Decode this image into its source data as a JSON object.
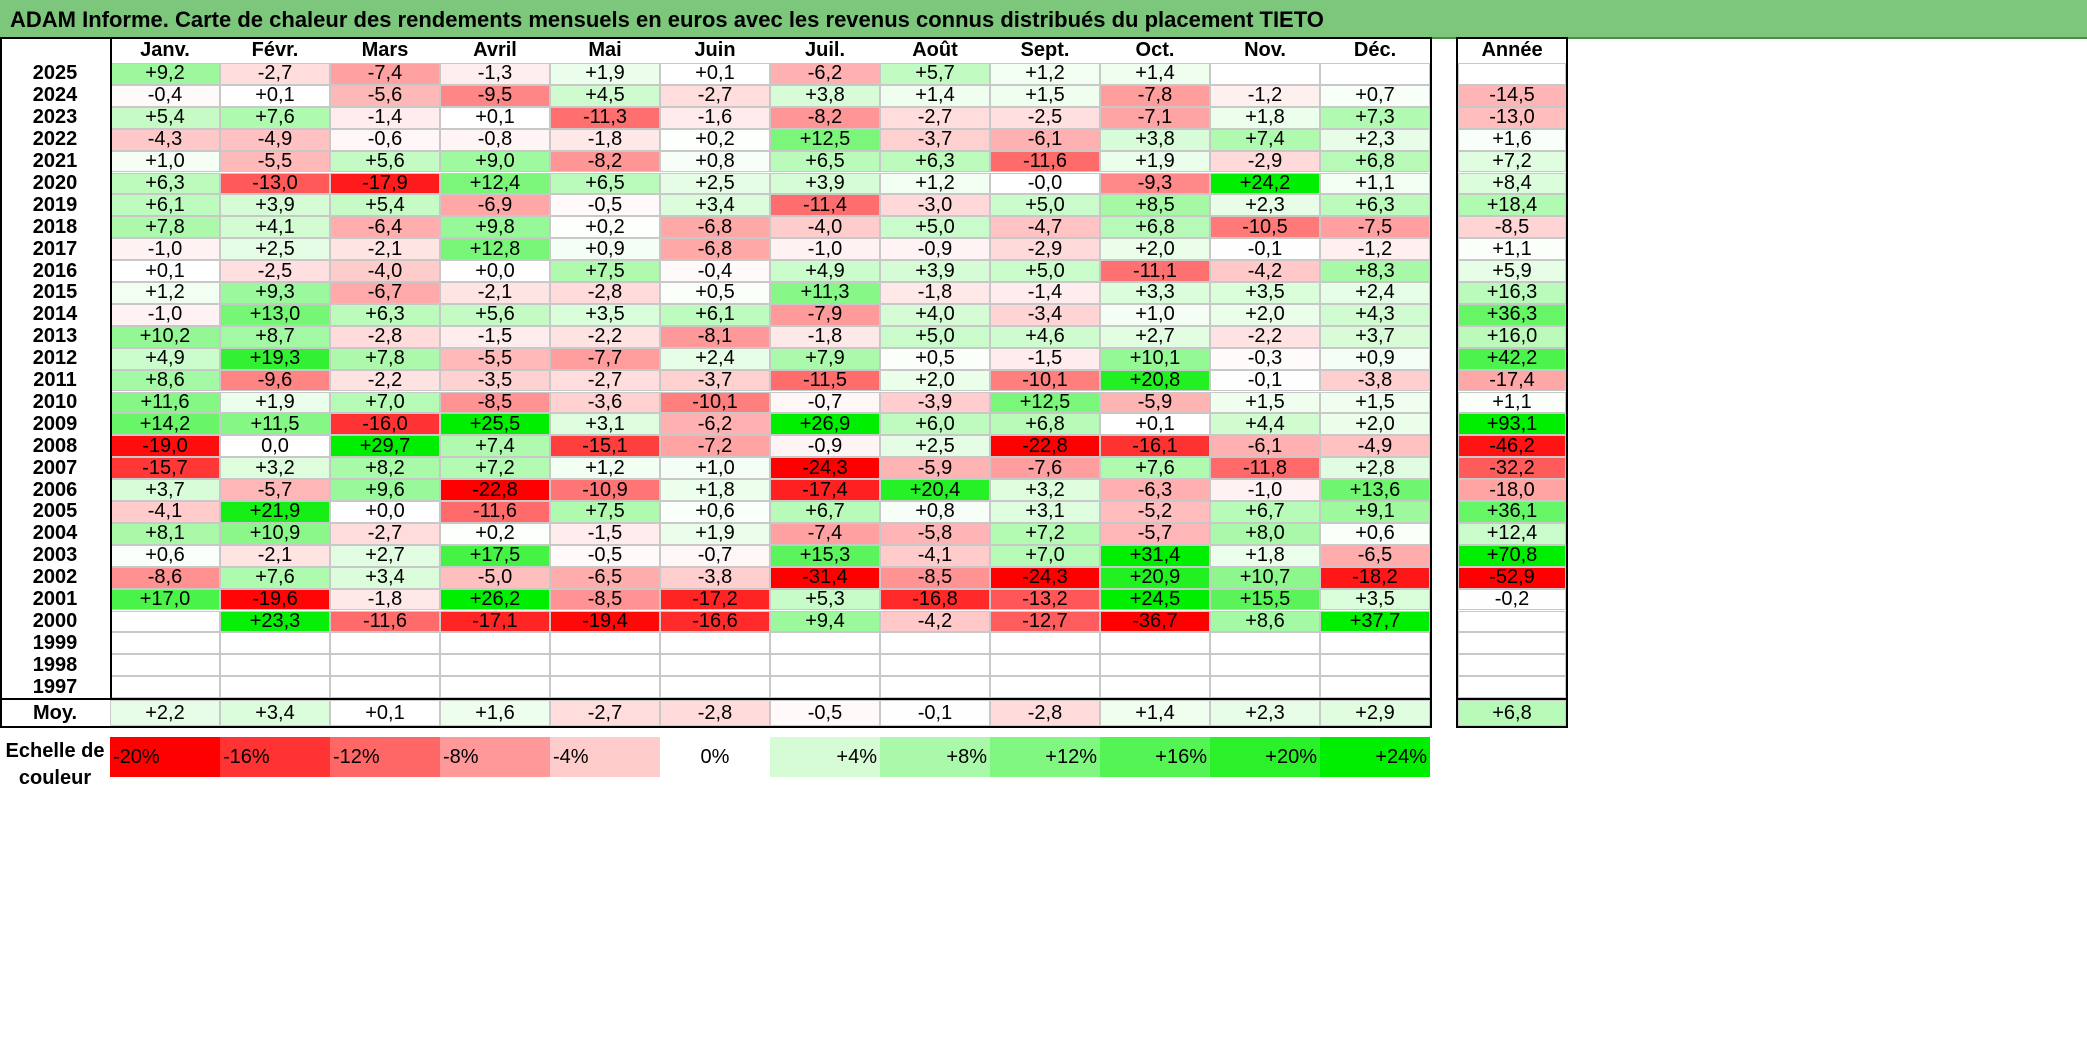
{
  "title": "ADAM Informe. Carte de chaleur des rendements mensuels en euros avec les revenus connus distribués du placement TIETO",
  "chart_data": {
    "type": "heatmap",
    "months": [
      "Janv.",
      "Févr.",
      "Mars",
      "Avril",
      "Mai",
      "Juin",
      "Juil.",
      "Août",
      "Sept.",
      "Oct.",
      "Nov.",
      "Déc."
    ],
    "year_header": "Année",
    "rows": [
      {
        "year": "2025",
        "values": [
          "+9,2",
          "-2,7",
          "-7,4",
          "-1,3",
          "+1,9",
          "+0,1",
          "-6,2",
          "+5,7",
          "+1,2",
          "+1,4",
          "",
          ""
        ],
        "annual": ""
      },
      {
        "year": "2024",
        "values": [
          "-0,4",
          "+0,1",
          "-5,6",
          "-9,5",
          "+4,5",
          "-2,7",
          "+3,8",
          "+1,4",
          "+1,5",
          "-7,8",
          "-1,2",
          "+0,7"
        ],
        "annual": "-14,5"
      },
      {
        "year": "2023",
        "values": [
          "+5,4",
          "+7,6",
          "-1,4",
          "+0,1",
          "-11,3",
          "-1,6",
          "-8,2",
          "-2,7",
          "-2,5",
          "-7,1",
          "+1,8",
          "+7,3"
        ],
        "annual": "-13,0"
      },
      {
        "year": "2022",
        "values": [
          "-4,3",
          "-4,9",
          "-0,6",
          "-0,8",
          "-1,8",
          "+0,2",
          "+12,5",
          "-3,7",
          "-6,1",
          "+3,8",
          "+7,4",
          "+2,3"
        ],
        "annual": "+1,6"
      },
      {
        "year": "2021",
        "values": [
          "+1,0",
          "-5,5",
          "+5,6",
          "+9,0",
          "-8,2",
          "+0,8",
          "+6,5",
          "+6,3",
          "-11,6",
          "+1,9",
          "-2,9",
          "+6,8"
        ],
        "annual": "+7,2"
      },
      {
        "year": "2020",
        "values": [
          "+6,3",
          "-13,0",
          "-17,9",
          "+12,4",
          "+6,5",
          "+2,5",
          "+3,9",
          "+1,2",
          "-0,0",
          "-9,3",
          "+24,2",
          "+1,1"
        ],
        "annual": "+8,4"
      },
      {
        "year": "2019",
        "values": [
          "+6,1",
          "+3,9",
          "+5,4",
          "-6,9",
          "-0,5",
          "+3,4",
          "-11,4",
          "-3,0",
          "+5,0",
          "+8,5",
          "+2,3",
          "+6,3"
        ],
        "annual": "+18,4"
      },
      {
        "year": "2018",
        "values": [
          "+7,8",
          "+4,1",
          "-6,4",
          "+9,8",
          "+0,2",
          "-6,8",
          "-4,0",
          "+5,0",
          "-4,7",
          "+6,8",
          "-10,5",
          "-7,5"
        ],
        "annual": "-8,5"
      },
      {
        "year": "2017",
        "values": [
          "-1,0",
          "+2,5",
          "-2,1",
          "+12,8",
          "+0,9",
          "-6,8",
          "-1,0",
          "-0,9",
          "-2,9",
          "+2,0",
          "-0,1",
          "-1,2"
        ],
        "annual": "+1,1"
      },
      {
        "year": "2016",
        "values": [
          "+0,1",
          "-2,5",
          "-4,0",
          "+0,0",
          "+7,5",
          "-0,4",
          "+4,9",
          "+3,9",
          "+5,0",
          "-11,1",
          "-4,2",
          "+8,3"
        ],
        "annual": "+5,9"
      },
      {
        "year": "2015",
        "values": [
          "+1,2",
          "+9,3",
          "-6,7",
          "-2,1",
          "-2,8",
          "+0,5",
          "+11,3",
          "-1,8",
          "-1,4",
          "+3,3",
          "+3,5",
          "+2,4"
        ],
        "annual": "+16,3"
      },
      {
        "year": "2014",
        "values": [
          "-1,0",
          "+13,0",
          "+6,3",
          "+5,6",
          "+3,5",
          "+6,1",
          "-7,9",
          "+4,0",
          "-3,4",
          "+1,0",
          "+2,0",
          "+4,3"
        ],
        "annual": "+36,3"
      },
      {
        "year": "2013",
        "values": [
          "+10,2",
          "+8,7",
          "-2,8",
          "-1,5",
          "-2,2",
          "-8,1",
          "-1,8",
          "+5,0",
          "+4,6",
          "+2,7",
          "-2,2",
          "+3,7"
        ],
        "annual": "+16,0"
      },
      {
        "year": "2012",
        "values": [
          "+4,9",
          "+19,3",
          "+7,8",
          "-5,5",
          "-7,7",
          "+2,4",
          "+7,9",
          "+0,5",
          "-1,5",
          "+10,1",
          "-0,3",
          "+0,9"
        ],
        "annual": "+42,2"
      },
      {
        "year": "2011",
        "values": [
          "+8,6",
          "-9,6",
          "-2,2",
          "-3,5",
          "-2,7",
          "-3,7",
          "-11,5",
          "+2,0",
          "-10,1",
          "+20,8",
          "-0,1",
          "-3,8"
        ],
        "annual": "-17,4"
      },
      {
        "year": "2010",
        "values": [
          "+11,6",
          "+1,9",
          "+7,0",
          "-8,5",
          "-3,6",
          "-10,1",
          "-0,7",
          "-3,9",
          "+12,5",
          "-5,9",
          "+1,5",
          "+1,5"
        ],
        "annual": "+1,1"
      },
      {
        "year": "2009",
        "values": [
          "+14,2",
          "+11,5",
          "-16,0",
          "+25,5",
          "+3,1",
          "-6,2",
          "+26,9",
          "+6,0",
          "+6,8",
          "+0,1",
          "+4,4",
          "+2,0"
        ],
        "annual": "+93,1"
      },
      {
        "year": "2008",
        "values": [
          "-19,0",
          "0,0",
          "+29,7",
          "+7,4",
          "-15,1",
          "-7,2",
          "-0,9",
          "+2,5",
          "-22,8",
          "-16,1",
          "-6,1",
          "-4,9"
        ],
        "annual": "-46,2"
      },
      {
        "year": "2007",
        "values": [
          "-15,7",
          "+3,2",
          "+8,2",
          "+7,2",
          "+1,2",
          "+1,0",
          "-24,3",
          "-5,9",
          "-7,6",
          "+7,6",
          "-11,8",
          "+2,8"
        ],
        "annual": "-32,2"
      },
      {
        "year": "2006",
        "values": [
          "+3,7",
          "-5,7",
          "+9,6",
          "-22,8",
          "-10,9",
          "+1,8",
          "-17,4",
          "+20,4",
          "+3,2",
          "-6,3",
          "-1,0",
          "+13,6"
        ],
        "annual": "-18,0"
      },
      {
        "year": "2005",
        "values": [
          "-4,1",
          "+21,9",
          "+0,0",
          "-11,6",
          "+7,5",
          "+0,6",
          "+6,7",
          "+0,8",
          "+3,1",
          "-5,2",
          "+6,7",
          "+9,1"
        ],
        "annual": "+36,1"
      },
      {
        "year": "2004",
        "values": [
          "+8,1",
          "+10,9",
          "-2,7",
          "+0,2",
          "-1,5",
          "+1,9",
          "-7,4",
          "-5,8",
          "+7,2",
          "-5,7",
          "+8,0",
          "+0,6"
        ],
        "annual": "+12,4"
      },
      {
        "year": "2003",
        "values": [
          "+0,6",
          "-2,1",
          "+2,7",
          "+17,5",
          "-0,5",
          "-0,7",
          "+15,3",
          "-4,1",
          "+7,0",
          "+31,4",
          "+1,8",
          "-6,5"
        ],
        "annual": "+70,8"
      },
      {
        "year": "2002",
        "values": [
          "-8,6",
          "+7,6",
          "+3,4",
          "-5,0",
          "-6,5",
          "-3,8",
          "-31,4",
          "-8,5",
          "-24,3",
          "+20,9",
          "+10,7",
          "-18,2"
        ],
        "annual": "-52,9"
      },
      {
        "year": "2001",
        "values": [
          "+17,0",
          "-19,6",
          "-1,8",
          "+26,2",
          "-8,5",
          "-17,2",
          "+5,3",
          "-16,8",
          "-13,2",
          "+24,5",
          "+15,5",
          "+3,5"
        ],
        "annual": "-0,2"
      },
      {
        "year": "2000",
        "values": [
          "",
          "+23,3",
          "-11,6",
          "-17,1",
          "-19,4",
          "-16,6",
          "+9,4",
          "-4,2",
          "-12,7",
          "-36,7",
          "+8,6",
          "+37,7"
        ],
        "annual": ""
      },
      {
        "year": "1999",
        "values": [
          "",
          "",
          "",
          "",
          "",
          "",
          "",
          "",
          "",
          "",
          "",
          ""
        ],
        "annual": ""
      },
      {
        "year": "1998",
        "values": [
          "",
          "",
          "",
          "",
          "",
          "",
          "",
          "",
          "",
          "",
          "",
          ""
        ],
        "annual": ""
      },
      {
        "year": "1997",
        "values": [
          "",
          "",
          "",
          "",
          "",
          "",
          "",
          "",
          "",
          "",
          "",
          ""
        ],
        "annual": ""
      }
    ],
    "average": {
      "label": "Moy.",
      "values": [
        "+2,2",
        "+3,4",
        "+0,1",
        "+1,6",
        "-2,7",
        "-2,8",
        "-0,5",
        "-0,1",
        "-2,8",
        "+1,4",
        "+2,3",
        "+2,9"
      ],
      "annual": "+6,8"
    },
    "legend": {
      "label_line1": "Echelle de",
      "label_line2": "couleur",
      "steps": [
        {
          "label": "-20%",
          "value": -20
        },
        {
          "label": "-16%",
          "value": -16
        },
        {
          "label": "-12%",
          "value": -12
        },
        {
          "label": "-8%",
          "value": -8
        },
        {
          "label": "-4%",
          "value": -4
        },
        {
          "label": "0%",
          "value": 0
        },
        {
          "label": "+4%",
          "value": 4
        },
        {
          "label": "+8%",
          "value": 8
        },
        {
          "label": "+12%",
          "value": 12
        },
        {
          "label": "+16%",
          "value": 16
        },
        {
          "label": "+20%",
          "value": 20
        },
        {
          "label": "+24%",
          "value": 24
        }
      ]
    },
    "colors": {
      "negative": "#ff0000",
      "neutral": "#ffffff",
      "positive": "#00ee00"
    }
  }
}
